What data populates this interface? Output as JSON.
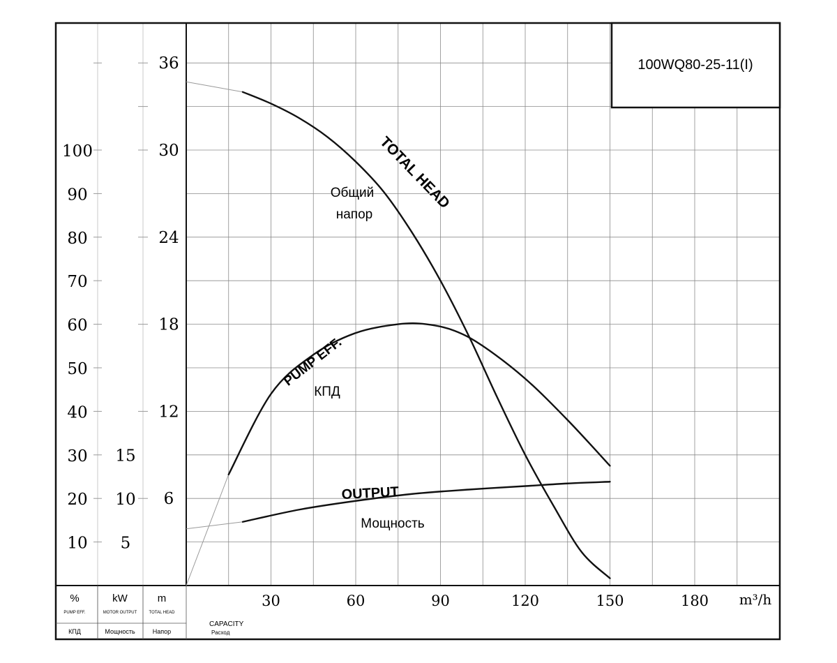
{
  "chart_data": {
    "type": "line",
    "title": "100WQ80-25-11(I)",
    "x_unit": "m³/h",
    "xlim": [
      0,
      210
    ],
    "x_ticks": [
      30,
      60,
      90,
      120,
      150,
      180
    ],
    "head_ticks": [
      6,
      12,
      18,
      24,
      30,
      36
    ],
    "eff_ticks": [
      10,
      20,
      30,
      40,
      50,
      60,
      70,
      80,
      90,
      100
    ],
    "power_ticks": [
      5,
      10,
      15
    ],
    "axes": {
      "pct": {
        "unit": "%",
        "label_en": "PUMP EFF.",
        "label_ru": "КПД"
      },
      "kw": {
        "unit": "kW",
        "label_en": "MOTOR OUTPUT",
        "label_ru": "Мощность"
      },
      "m": {
        "unit": "m",
        "label_en": "TOTAL HEAD",
        "label_ru": "Напор"
      },
      "x": {
        "label_en": "CAPACITY",
        "label_ru": "Расход"
      }
    },
    "grid": true,
    "series": [
      {
        "name": "TOTAL HEAD",
        "name_ru": "Общий напор",
        "axis": "m",
        "points": [
          [
            20,
            34.0
          ],
          [
            30,
            33.2
          ],
          [
            40,
            32.2
          ],
          [
            50,
            30.9
          ],
          [
            60,
            29.2
          ],
          [
            70,
            27.1
          ],
          [
            80,
            24.3
          ],
          [
            90,
            21.0
          ],
          [
            100,
            17.2
          ],
          [
            110,
            13.0
          ],
          [
            120,
            9.0
          ],
          [
            130,
            5.5
          ],
          [
            140,
            2.3
          ],
          [
            150,
            0.5
          ]
        ],
        "extrapolated": [
          [
            0,
            34.7
          ],
          [
            20,
            34.0
          ]
        ]
      },
      {
        "name": "PUMP EFF.",
        "name_ru": "КПД",
        "axis": "pct",
        "points": [
          [
            15,
            25.5
          ],
          [
            30,
            44.0
          ],
          [
            45,
            53.0
          ],
          [
            60,
            58.0
          ],
          [
            75,
            60.0
          ],
          [
            85,
            60.0
          ],
          [
            95,
            58.5
          ],
          [
            105,
            55.0
          ],
          [
            120,
            47.5
          ],
          [
            135,
            38.0
          ],
          [
            150,
            27.5
          ]
        ],
        "extrapolated": [
          [
            0,
            0
          ],
          [
            15,
            25.5
          ]
        ]
      },
      {
        "name": "OUTPUT",
        "name_ru": "Мощность",
        "axis": "kw",
        "points": [
          [
            20,
            7.3
          ],
          [
            40,
            8.7
          ],
          [
            60,
            9.7
          ],
          [
            80,
            10.5
          ],
          [
            100,
            11.0
          ],
          [
            120,
            11.4
          ],
          [
            135,
            11.7
          ],
          [
            150,
            11.9
          ]
        ],
        "extrapolated": [
          [
            0,
            6.5
          ],
          [
            20,
            7.3
          ]
        ]
      }
    ]
  }
}
